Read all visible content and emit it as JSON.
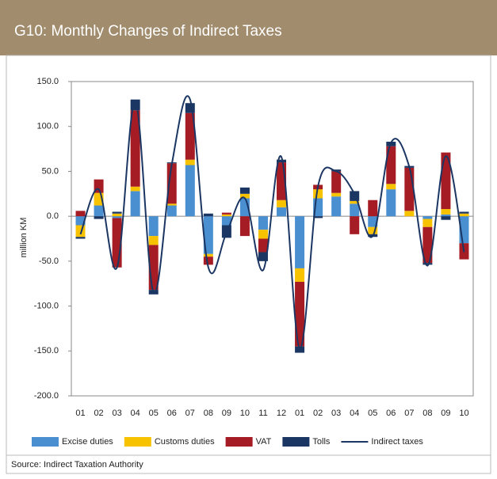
{
  "chart_data": {
    "type": "bar",
    "title": "G10:  Monthly Changes of Indirect Taxes",
    "y_label": "million KM",
    "source": "Source: Indirect Taxation Authority",
    "categories": [
      "01",
      "02",
      "03",
      "04",
      "05",
      "06",
      "07",
      "08",
      "09",
      "10",
      "11",
      "12",
      "01",
      "02",
      "03",
      "04",
      "05",
      "06",
      "07",
      "08",
      "09",
      "10"
    ],
    "ylim": [
      -200,
      150
    ],
    "yticks": [
      {
        "value": 150,
        "label": "150.0"
      },
      {
        "value": 100,
        "label": "100.0"
      },
      {
        "value": 50,
        "label": "50.0"
      },
      {
        "value": 0,
        "label": "0.0"
      },
      {
        "value": -50,
        "label": "-50.0"
      },
      {
        "value": -100,
        "label": "-100.0"
      },
      {
        "value": -150,
        "label": "-150.0"
      },
      {
        "value": -200,
        "label": "-200.0"
      }
    ],
    "stacked": true,
    "series": [
      {
        "name": "Excise duties",
        "color": "#4a8fd0",
        "values": [
          -10,
          12,
          -2,
          28,
          -22,
          12,
          57,
          -42,
          -10,
          20,
          -15,
          10,
          -58,
          20,
          22,
          14,
          -12,
          30,
          0,
          -3,
          2,
          -30
        ]
      },
      {
        "name": "Customs duties",
        "color": "#f7c200",
        "values": [
          -13,
          14,
          3,
          5,
          -10,
          2,
          6,
          -3,
          2,
          5,
          -10,
          8,
          -15,
          10,
          4,
          3,
          -8,
          6,
          6,
          -9,
          6,
          3
        ]
      },
      {
        "name": "VAT",
        "color": "#a51c24",
        "values": [
          6,
          15,
          -55,
          85,
          -50,
          45,
          52,
          -9,
          2,
          -22,
          -15,
          42,
          -72,
          5,
          24,
          -20,
          18,
          42,
          48,
          -40,
          63,
          -18
        ]
      },
      {
        "name": "Tolls",
        "color": "#1b3663",
        "values": [
          -2,
          -3,
          2,
          12,
          -5,
          1,
          11,
          3,
          -14,
          7,
          -10,
          3,
          -7,
          -2,
          2,
          11,
          -3,
          5,
          2,
          -2,
          -4,
          2
        ]
      },
      {
        "name": "Indirect taxes",
        "type": "line",
        "color": "#1b3663",
        "values": [
          -20,
          30,
          -57,
          128,
          -85,
          58,
          130,
          -57,
          -18,
          20,
          -60,
          66,
          -147,
          33,
          50,
          25,
          -22,
          82,
          55,
          -55,
          67,
          -40
        ]
      }
    ]
  }
}
